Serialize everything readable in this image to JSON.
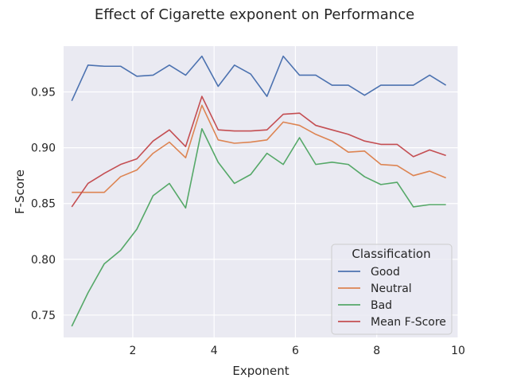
{
  "chart_data": {
    "type": "line",
    "title": "Effect of Cigarette exponent on Performance",
    "xlabel": "Exponent",
    "ylabel": "F-Score",
    "xlim": [
      0.3,
      10.0
    ],
    "ylim": [
      0.73,
      0.991
    ],
    "xticks": [
      2,
      4,
      6,
      8,
      10
    ],
    "xtick_labels": [
      "2",
      "4",
      "6",
      "8",
      "10"
    ],
    "yticks": [
      0.75,
      0.8,
      0.85,
      0.9,
      0.95
    ],
    "ytick_labels": [
      "0.75",
      "0.80",
      "0.85",
      "0.90",
      "0.95"
    ],
    "grid": true,
    "legend": {
      "title": "Classification",
      "placement": "lower-right"
    },
    "x": [
      0.5,
      0.9,
      1.3,
      1.7,
      2.1,
      2.5,
      2.9,
      3.3,
      3.7,
      4.1,
      4.5,
      4.9,
      5.3,
      5.7,
      6.1,
      6.5,
      6.9,
      7.3,
      7.7,
      8.1,
      8.5,
      8.9,
      9.3,
      9.7
    ],
    "series": [
      {
        "name": "Good",
        "color": "#4c72b0",
        "values": [
          0.942,
          0.974,
          0.973,
          0.973,
          0.964,
          0.965,
          0.974,
          0.965,
          0.982,
          0.955,
          0.974,
          0.966,
          0.946,
          0.982,
          0.965,
          0.965,
          0.956,
          0.956,
          0.947,
          0.956,
          0.956,
          0.956,
          0.965,
          0.956
        ]
      },
      {
        "name": "Neutral",
        "color": "#dd8452",
        "values": [
          0.86,
          0.86,
          0.86,
          0.874,
          0.88,
          0.895,
          0.905,
          0.891,
          0.938,
          0.907,
          0.904,
          0.905,
          0.907,
          0.923,
          0.92,
          0.912,
          0.906,
          0.896,
          0.897,
          0.885,
          0.884,
          0.875,
          0.879,
          0.873
        ]
      },
      {
        "name": "Bad",
        "color": "#55a868",
        "values": [
          0.74,
          0.77,
          0.796,
          0.808,
          0.827,
          0.857,
          0.868,
          0.846,
          0.917,
          0.887,
          0.868,
          0.876,
          0.895,
          0.885,
          0.909,
          0.885,
          0.887,
          0.885,
          0.874,
          0.867,
          0.869,
          0.847,
          0.849,
          0.849
        ]
      },
      {
        "name": "Mean F-Score",
        "color": "#c44e52",
        "values": [
          0.847,
          0.868,
          0.877,
          0.885,
          0.89,
          0.906,
          0.916,
          0.901,
          0.946,
          0.916,
          0.915,
          0.915,
          0.916,
          0.93,
          0.931,
          0.92,
          0.916,
          0.912,
          0.906,
          0.903,
          0.903,
          0.892,
          0.898,
          0.893
        ]
      }
    ]
  }
}
